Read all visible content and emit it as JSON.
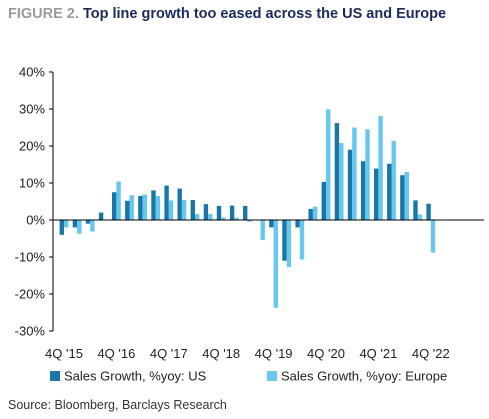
{
  "header": {
    "figure_label": "FIGURE 2.",
    "title": "Top line growth too eased across the US and Europe"
  },
  "source": "Source: Bloomberg, Barclays Research",
  "chart_data": {
    "type": "bar",
    "title": "Top line growth too eased across the US and Europe",
    "categories": [
      "4Q'15",
      "1Q'16",
      "2Q'16",
      "3Q'16",
      "4Q'16",
      "1Q'17",
      "2Q'17",
      "3Q'17",
      "4Q'17",
      "1Q'18",
      "2Q'18",
      "3Q'18",
      "4Q'18",
      "1Q'19",
      "2Q'19",
      "3Q'19",
      "4Q'19",
      "1Q'20",
      "2Q'20",
      "3Q'20",
      "4Q'20",
      "1Q'21",
      "2Q'21",
      "3Q'21",
      "4Q'21",
      "1Q'22",
      "2Q'22",
      "3Q'22",
      "4Q'22",
      "1Q'23"
    ],
    "x_tick_labels": [
      "4Q '15",
      "4Q '16",
      "4Q '17",
      "4Q '18",
      "4Q '19",
      "4Q '20",
      "4Q '21",
      "4Q '22"
    ],
    "series": [
      {
        "name": "Sales Growth, %yoy: US",
        "color": "#1a75a8",
        "values": [
          -4,
          -2,
          -1,
          2,
          7.5,
          5.2,
          6.5,
          8,
          9.3,
          8.5,
          5.4,
          4.3,
          3.8,
          3.9,
          3.8,
          0,
          -2,
          -11,
          -2,
          3,
          10.3,
          26.2,
          19,
          15.9,
          13.9,
          15.2,
          12.1,
          5.3,
          4.4,
          0
        ]
      },
      {
        "name": "Sales Growth, %yoy: Europe",
        "color": "#66c8ee",
        "values": [
          -2,
          -3.7,
          -3.1,
          0,
          10.4,
          6.7,
          6.9,
          6.5,
          5.3,
          5.4,
          1.6,
          1.6,
          0.7,
          0.6,
          -0.5,
          -5.4,
          -23.7,
          -12.7,
          -10.7,
          3.6,
          29.9,
          20.8,
          25,
          24.5,
          28.1,
          21.4,
          13,
          1.5,
          -8.8,
          0
        ]
      }
    ],
    "xlabel": "",
    "ylabel": "",
    "ylim": [
      -30,
      40
    ],
    "yticks": [
      -30,
      -20,
      -10,
      0,
      10,
      20,
      30,
      40
    ],
    "ytick_suffix": "%",
    "legend_position": "bottom",
    "grid": false
  }
}
